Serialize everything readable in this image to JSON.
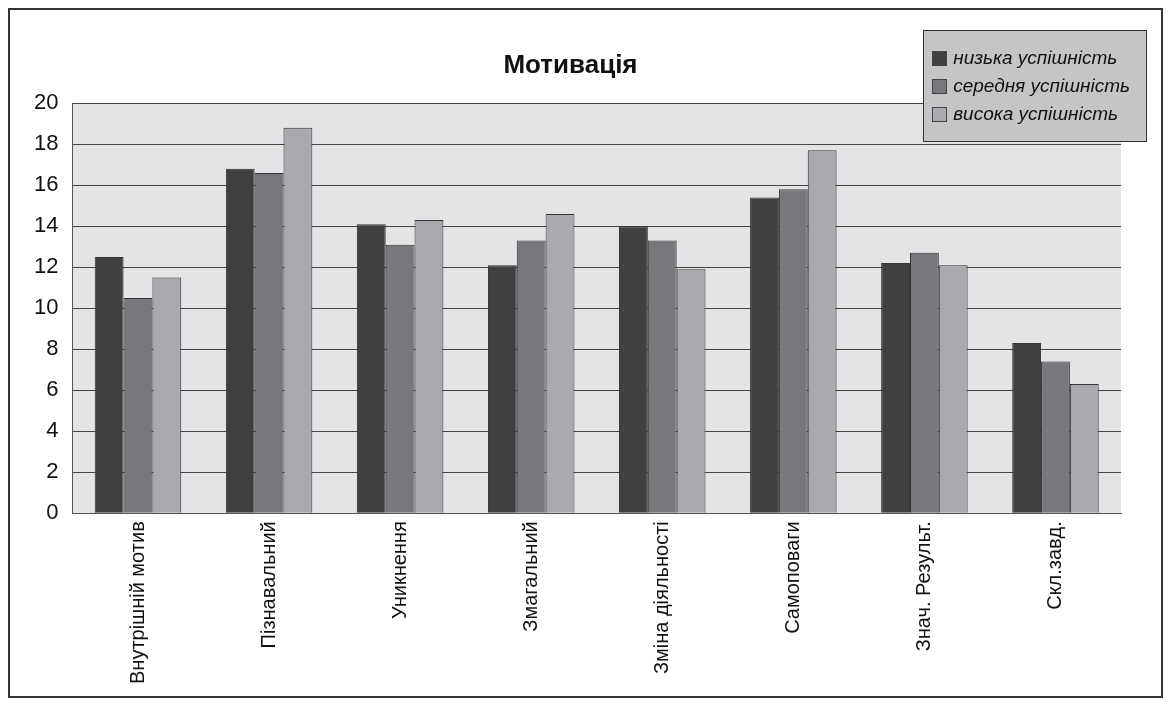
{
  "chart_data": {
    "type": "bar",
    "title": "Мотивація",
    "categories": [
      "Внутрішній мотив",
      "Пізнавальний",
      "Уникнення",
      "Змагальний",
      "Зміна діяльності",
      "Самоповаги",
      "Знач. Результ.",
      "Скл.завд."
    ],
    "series": [
      {
        "name": "низька успішність",
        "color": "#404040",
        "values": [
          12.5,
          16.8,
          14.1,
          12.1,
          14.0,
          15.4,
          12.2,
          8.3
        ]
      },
      {
        "name": "середня успішність",
        "color": "#77787c",
        "values": [
          10.5,
          16.6,
          13.1,
          13.3,
          13.3,
          15.8,
          12.7,
          7.4
        ]
      },
      {
        "name": "висока успішність",
        "color": "#a9aaad",
        "values": [
          11.5,
          18.8,
          14.3,
          14.6,
          11.9,
          17.7,
          12.1,
          6.3
        ]
      }
    ],
    "ylim": [
      0,
      20
    ],
    "yticks": [
      0,
      2,
      4,
      6,
      8,
      10,
      12,
      14,
      16,
      18,
      20
    ],
    "grid": "y",
    "legend": "top right"
  }
}
